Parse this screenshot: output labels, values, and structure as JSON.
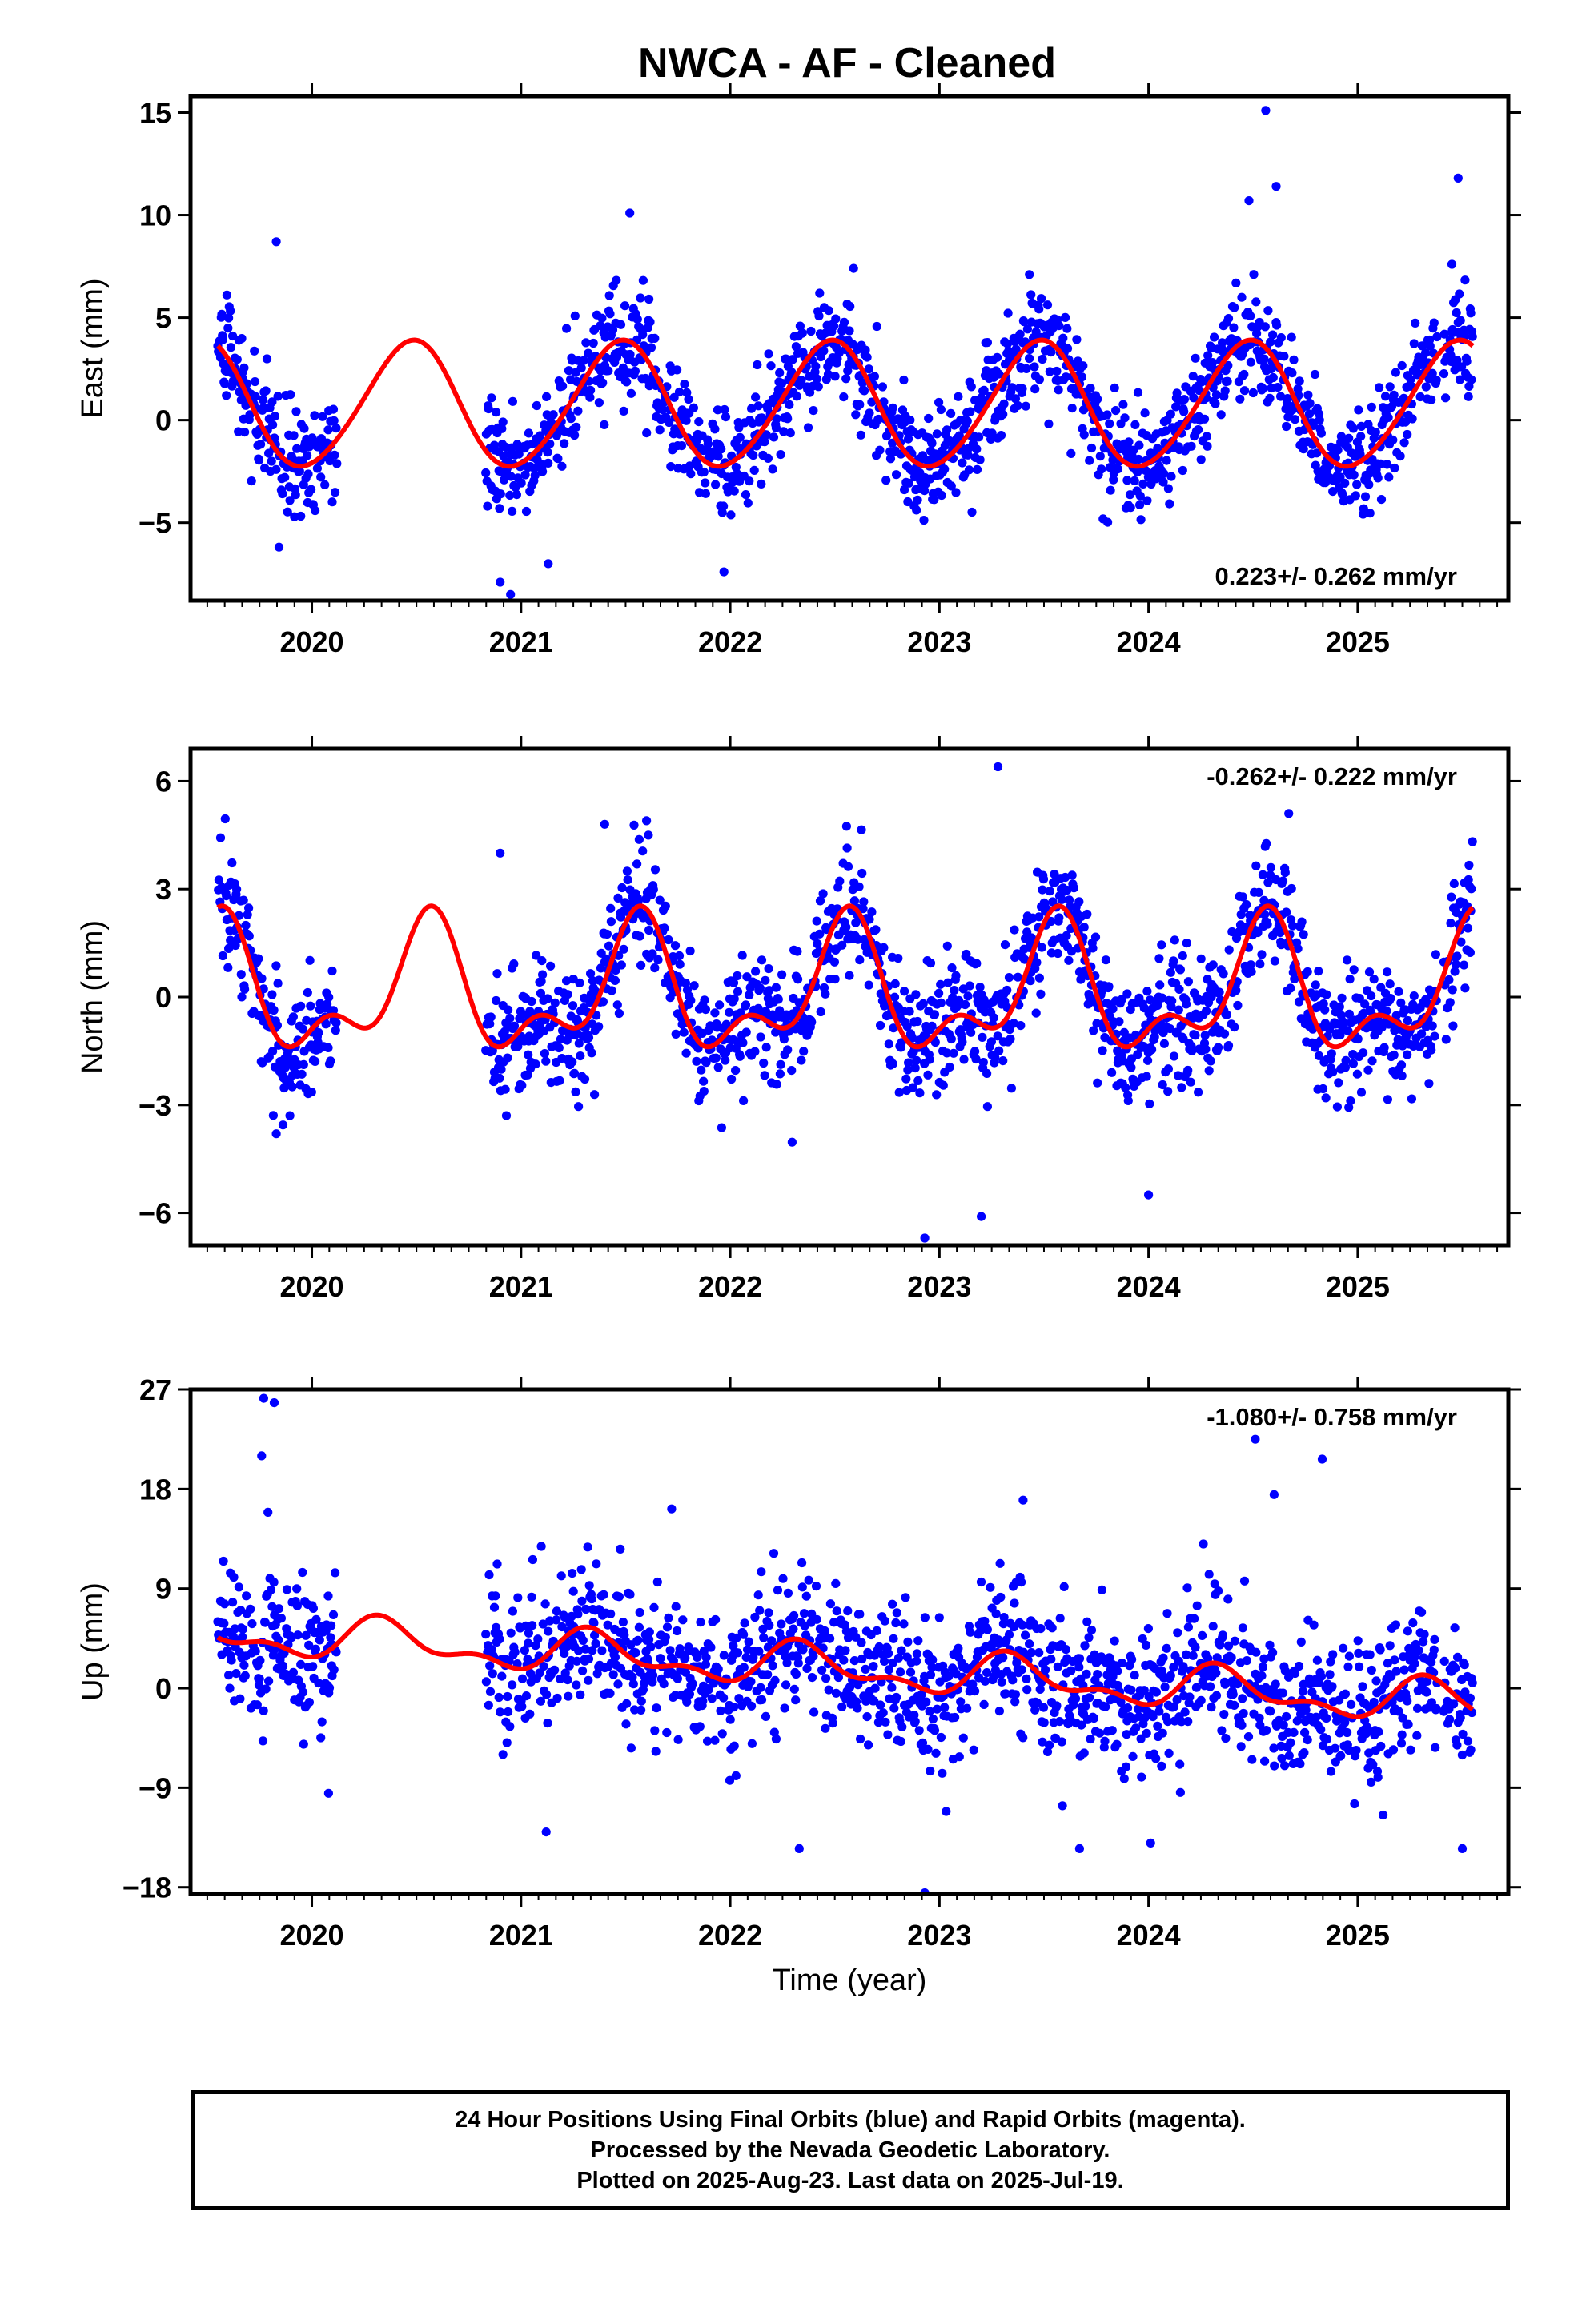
{
  "title": "NWCA  - AF - Cleaned",
  "colors": {
    "points": "#0000ff",
    "model": "#ff0000",
    "frame": "#000000"
  },
  "footer": {
    "line1": "24 Hour Positions Using Final Orbits (blue) and Rapid Orbits (magenta).",
    "line2": "Processed by the Nevada Geodetic Laboratory.",
    "line3": "Plotted on 2025-Aug-23. Last data on 2025-Jul-19."
  },
  "chart_data": [
    {
      "type": "scatter",
      "name": "east",
      "ylabel": "East (mm)",
      "xlim": [
        2019.42,
        2025.72
      ],
      "ylim": [
        -8.8,
        15.8
      ],
      "yticks": [
        15,
        10,
        5,
        0,
        -5
      ],
      "ytick_labels": [
        "15",
        "10",
        "5",
        "0",
        "−5"
      ],
      "xticks": [
        2020,
        2021,
        2022,
        2023,
        2024,
        2025
      ],
      "xtick_labels": [
        "2020",
        "2021",
        "2022",
        "2023",
        "2024",
        "2025"
      ],
      "rate_label": "0.223+/- 0.262 mm/yr",
      "rate_position": "bottom-right",
      "model": {
        "mean": 0.7,
        "amp1": 3.05,
        "phase1": 2020.47,
        "amp2": 0.25,
        "phase2": 2020.55
      },
      "noise_sd": 1.3,
      "outliers": [
        [
          2019.83,
          8.7
        ],
        [
          2021.52,
          10.1
        ],
        [
          2024.56,
          15.1
        ],
        [
          2024.61,
          11.4
        ],
        [
          2024.48,
          10.7
        ],
        [
          2025.48,
          11.8
        ],
        [
          2020.95,
          -8.5
        ],
        [
          2020.9,
          -7.9
        ],
        [
          2021.13,
          -7.0
        ],
        [
          2021.97,
          -7.4
        ],
        [
          2022.59,
          7.4
        ],
        [
          2023.43,
          7.1
        ],
        [
          2025.45,
          7.6
        ]
      ]
    },
    {
      "type": "scatter",
      "name": "north",
      "ylabel": "North (mm)",
      "xlim": [
        2019.42,
        2025.72
      ],
      "ylim": [
        -6.9,
        6.9
      ],
      "yticks": [
        6,
        3,
        0,
        -3,
        -6
      ],
      "ytick_labels": [
        "6",
        "3",
        "0",
        "−3",
        "−6"
      ],
      "xticks": [
        2020,
        2021,
        2022,
        2023,
        2024,
        2025
      ],
      "xtick_labels": [
        "2020",
        "2021",
        "2022",
        "2023",
        "2024",
        "2025"
      ],
      "rate_label": "-0.262+/- 0.222 mm/yr",
      "rate_position": "top-right",
      "model": {
        "mean": 0.1,
        "amp1": 1.55,
        "phase1": 2020.55,
        "amp2": 0.9,
        "phase2": 2020.58
      },
      "noise_sd": 0.85,
      "outliers": [
        [
          2023.28,
          6.4
        ],
        [
          2022.93,
          -6.7
        ],
        [
          2023.2,
          -6.1
        ],
        [
          2019.83,
          -3.8
        ],
        [
          2024.67,
          5.1
        ],
        [
          2021.4,
          4.8
        ],
        [
          2021.6,
          4.9
        ],
        [
          2020.9,
          4.0
        ],
        [
          2024.0,
          -5.5
        ]
      ]
    },
    {
      "type": "scatter",
      "name": "up",
      "ylabel": "Up (mm)",
      "xlim": [
        2019.42,
        2025.72
      ],
      "ylim": [
        -18.6,
        27.0
      ],
      "yticks": [
        27,
        18,
        9,
        0,
        -9,
        -18
      ],
      "ytick_labels": [
        "27",
        "18",
        "9",
        "0",
        "−9",
        "−18"
      ],
      "xticks": [
        2020,
        2021,
        2022,
        2023,
        2024,
        2025
      ],
      "xtick_labels": [
        "2020",
        "2021",
        "2022",
        "2023",
        "2024",
        "2025"
      ],
      "xlabel": "Time (year)",
      "rate_label": "-1.080+/- 0.758 mm/yr",
      "rate_position": "top-right",
      "model": {
        "mean": 1.8,
        "amp1": 1.6,
        "phase1": 2020.35,
        "amp2": 0.9,
        "phase2": 2020.3,
        "trend": -1.08
      },
      "noise_sd": 3.3,
      "outliers": [
        [
          2019.77,
          26.2
        ],
        [
          2019.82,
          25.8
        ],
        [
          2019.76,
          21.0
        ],
        [
          2024.51,
          22.5
        ],
        [
          2024.83,
          20.7
        ],
        [
          2024.6,
          17.5
        ],
        [
          2021.72,
          16.2
        ],
        [
          2023.4,
          17.0
        ],
        [
          2022.93,
          -18.5
        ],
        [
          2021.12,
          -13.0
        ],
        [
          2022.33,
          -14.5
        ],
        [
          2023.67,
          -14.5
        ],
        [
          2024.01,
          -14.0
        ],
        [
          2025.5,
          -14.5
        ],
        [
          2020.08,
          -9.5
        ],
        [
          2019.79,
          15.9
        ]
      ]
    }
  ]
}
